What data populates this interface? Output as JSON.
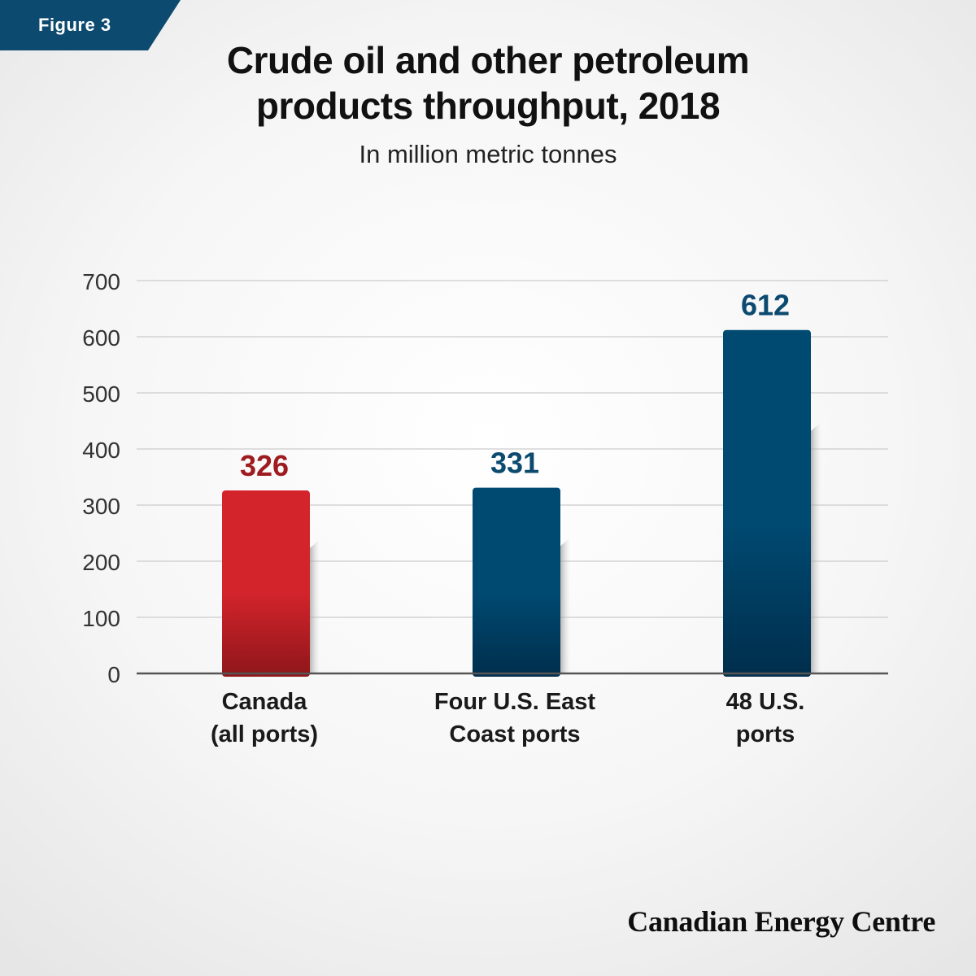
{
  "figure_label": "Figure 3",
  "title_line1": "Crude oil and other petroleum",
  "title_line2": "products throughput, 2018",
  "subtitle": "In million metric tonnes",
  "brand": "Canadian Energy Centre",
  "colors": {
    "tag": "#0d4a70",
    "canada": "#d3242b",
    "us": "#004a72",
    "canada_label": "#9e1b20",
    "us_label": "#0c4a70",
    "axis": "#555555",
    "grid": "#cccccc"
  },
  "chart_data": {
    "type": "bar",
    "title": "Crude oil and other petroleum products throughput, 2018",
    "subtitle": "In million metric tonnes",
    "categories": [
      [
        "Canada",
        "(all ports)"
      ],
      [
        "Four U.S. East",
        "Coast ports"
      ],
      [
        "48 U.S.",
        "ports"
      ]
    ],
    "values": [
      326,
      331,
      612
    ],
    "value_labels": [
      "326",
      "331",
      "612"
    ],
    "bar_colors": [
      "canada",
      "us",
      "us"
    ],
    "label_colors": [
      "canada_label",
      "us_label",
      "us_label"
    ],
    "ylim": [
      0,
      700
    ],
    "yticks": [
      0,
      100,
      200,
      300,
      400,
      500,
      600,
      700
    ],
    "grid": true,
    "legend": "none"
  }
}
